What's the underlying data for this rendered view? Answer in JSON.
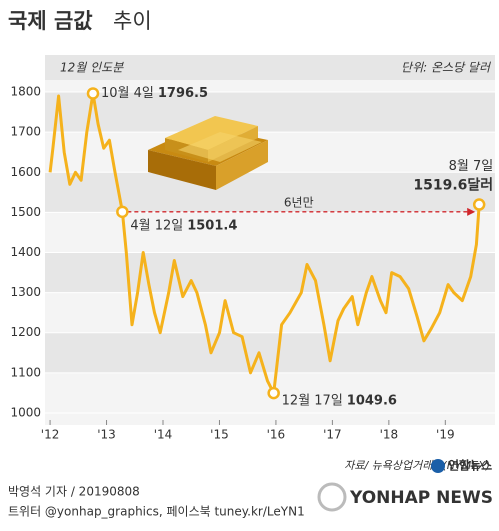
{
  "chart_data": {
    "type": "line",
    "title": "국제 금값",
    "title_suffix": "추이",
    "subtitle": "12월 인도분",
    "unit": "단위: 온스당 달러",
    "color": "#f5b21c",
    "x": [
      2012.0,
      2012.05,
      2012.15,
      2012.25,
      2012.35,
      2012.45,
      2012.55,
      2012.65,
      2012.76,
      2012.85,
      2012.95,
      2013.05,
      2013.15,
      2013.28,
      2013.35,
      2013.45,
      2013.55,
      2013.65,
      2013.75,
      2013.85,
      2013.95,
      2014.1,
      2014.2,
      2014.35,
      2014.5,
      2014.6,
      2014.75,
      2014.85,
      2015.0,
      2015.1,
      2015.25,
      2015.4,
      2015.55,
      2015.7,
      2015.85,
      2015.96,
      2016.1,
      2016.25,
      2016.45,
      2016.55,
      2016.7,
      2016.85,
      2016.96,
      2017.1,
      2017.2,
      2017.35,
      2017.45,
      2017.6,
      2017.7,
      2017.85,
      2017.95,
      2018.05,
      2018.2,
      2018.35,
      2018.5,
      2018.62,
      2018.75,
      2018.9,
      2019.05,
      2019.15,
      2019.3,
      2019.45,
      2019.55,
      2019.6
    ],
    "values": [
      1600,
      1660,
      1790,
      1650,
      1570,
      1600,
      1580,
      1700,
      1796.5,
      1720,
      1660,
      1680,
      1600,
      1501.4,
      1400,
      1220,
      1300,
      1400,
      1320,
      1250,
      1200,
      1300,
      1380,
      1290,
      1330,
      1300,
      1220,
      1150,
      1200,
      1280,
      1200,
      1190,
      1100,
      1150,
      1080,
      1049.6,
      1220,
      1250,
      1300,
      1370,
      1330,
      1220,
      1130,
      1230,
      1260,
      1290,
      1220,
      1300,
      1340,
      1280,
      1250,
      1350,
      1340,
      1310,
      1240,
      1180,
      1210,
      1250,
      1320,
      1300,
      1280,
      1340,
      1420,
      1519.6
    ],
    "xlim": [
      2011.91,
      2019.88
    ],
    "ylim": [
      970,
      1830
    ],
    "xticks": [
      {
        "value": 2012,
        "label": "'12"
      },
      {
        "value": 2013,
        "label": "'13"
      },
      {
        "value": 2014,
        "label": "'14"
      },
      {
        "value": 2015,
        "label": "'15"
      },
      {
        "value": 2016,
        "label": "'16"
      },
      {
        "value": 2017,
        "label": "'17"
      },
      {
        "value": 2018,
        "label": "'18"
      },
      {
        "value": 2019,
        "label": "'19"
      }
    ],
    "yticks": [
      1000,
      1100,
      1200,
      1300,
      1400,
      1500,
      1600,
      1700,
      1800
    ],
    "annotations": [
      {
        "date": "10월 4일",
        "x": 2012.76,
        "value": 1796.5
      },
      {
        "date": "4월 12일",
        "x": 2013.28,
        "value": 1501.4
      },
      {
        "date": "12월 17일",
        "x": 2015.96,
        "value": 1049.6
      },
      {
        "date": "8월 7일",
        "x": 2019.6,
        "value": 1519.6,
        "value_label": "1519.6달러"
      }
    ],
    "span_label": "6년만",
    "source": "자료/ 뉴욕상업거래소(NYMEX)",
    "logo": "연합뉴스",
    "credit": "박영석 기자 / 20190808",
    "social": "트위터 @yonhap_graphics, 페이스북 tuney.kr/LeYN1",
    "watermark": "YONHAP NEWS"
  }
}
